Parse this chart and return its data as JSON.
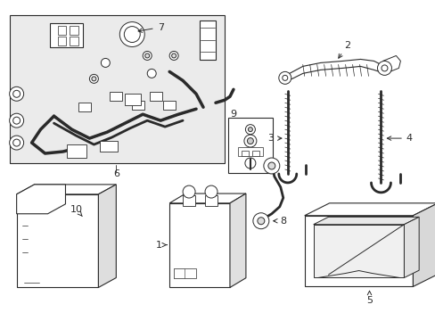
{
  "bg_color": "#ffffff",
  "line_color": "#2a2a2a",
  "fill_light": "#f2f2f2",
  "fill_white": "#ffffff",
  "fill_gray": "#d8d8d8",
  "figsize": [
    4.89,
    3.6
  ],
  "dpi": 100,
  "xlim": [
    0,
    489
  ],
  "ylim": [
    0,
    360
  ]
}
